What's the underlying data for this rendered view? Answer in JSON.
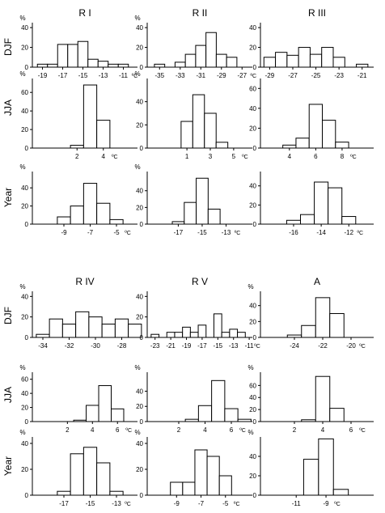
{
  "page": {
    "background": "#ffffff",
    "bar_fill": "#ffffff",
    "line_color": "#000000"
  },
  "chart_data": [
    {
      "id": "r1-djf",
      "region": "R I",
      "season": "DJF",
      "type": "bar",
      "ylabel": "%",
      "xunit": "ºC",
      "ylim": [
        0,
        45
      ],
      "yticks": [
        0,
        20,
        40
      ],
      "xlim": [
        -20,
        -9.6
      ],
      "xticks": [
        -19,
        -17,
        -15,
        -13,
        -11
      ],
      "xticklabels": [
        "-19",
        "-17",
        "-15",
        "-13",
        "-11"
      ],
      "bin_width": 1,
      "bin_starts": [
        -19.5,
        -18.5,
        -17.5,
        -16.5,
        -15.5,
        -14.5,
        -13.5,
        -12.5,
        -11.5,
        -10.5
      ],
      "values": [
        3,
        3,
        23,
        23,
        26,
        8,
        6,
        3,
        3,
        0
      ]
    },
    {
      "id": "r2-djf",
      "region": "R II",
      "season": "DJF",
      "type": "bar",
      "ylabel": "%",
      "xunit": "ºC",
      "ylim": [
        0,
        45
      ],
      "yticks": [
        0,
        20,
        40
      ],
      "xlim": [
        -36.2,
        -26
      ],
      "xticks": [
        -35,
        -33,
        -31,
        -29,
        -27
      ],
      "xticklabels": [
        "-35",
        "-33",
        "-31",
        "-29",
        "-27"
      ],
      "bin_width": 1,
      "bin_starts": [
        -35.5,
        -34.5,
        -33.5,
        -32.5,
        -31.5,
        -30.5,
        -29.5,
        -28.5,
        -27.5
      ],
      "values": [
        3,
        0,
        5,
        13,
        22,
        35,
        13,
        10,
        0
      ]
    },
    {
      "id": "r3-djf",
      "region": "R III",
      "season": "DJF",
      "type": "bar",
      "ylabel": "",
      "xunit": "",
      "ylim": [
        0,
        45
      ],
      "yticks": [
        0,
        20,
        40
      ],
      "xlim": [
        -29.8,
        -20
      ],
      "xticks": [
        -29,
        -27,
        -25,
        -23,
        -21
      ],
      "xticklabels": [
        "-29",
        "-27",
        "-25",
        "-23",
        "-21"
      ],
      "bin_width": 1,
      "bin_starts": [
        -29.5,
        -28.5,
        -27.5,
        -26.5,
        -25.5,
        -24.5,
        -23.5,
        -22.5,
        -21.5,
        -20.5
      ],
      "values": [
        10,
        15,
        12,
        20,
        13,
        20,
        10,
        0,
        3,
        0
      ]
    },
    {
      "id": "r1-jja",
      "region": "R I",
      "season": "JJA",
      "type": "bar",
      "ylabel": "%",
      "xunit": "ºC",
      "ylim": [
        0,
        75
      ],
      "yticks": [
        0,
        20,
        40,
        60
      ],
      "xlim": [
        -1.4,
        6.6
      ],
      "xticks": [
        2,
        4
      ],
      "xticklabels": [
        "2",
        "4"
      ],
      "bin_width": 1,
      "bin_starts": [
        1.5,
        2.5,
        3.5
      ],
      "values": [
        3,
        68,
        30
      ]
    },
    {
      "id": "r2-jja",
      "region": "R II",
      "season": "JJA",
      "type": "bar",
      "ylabel": "%",
      "xunit": "ºC",
      "ylim": [
        0,
        60
      ],
      "yticks": [
        0,
        20,
        40
      ],
      "xlim": [
        -2.4,
        6.6
      ],
      "xticks": [
        1,
        3,
        5
      ],
      "xticklabels": [
        "1",
        "3",
        "5"
      ],
      "bin_width": 1,
      "bin_starts": [
        0.5,
        1.5,
        2.5,
        3.5
      ],
      "values": [
        23,
        46,
        30,
        5
      ]
    },
    {
      "id": "r3-jja",
      "region": "R III",
      "season": "JJA",
      "type": "bar",
      "ylabel": "",
      "xunit": "ºC",
      "ylim": [
        0,
        70
      ],
      "yticks": [
        0,
        20,
        40,
        60
      ],
      "xlim": [
        1.8,
        10.4
      ],
      "xticks": [
        4,
        6,
        8
      ],
      "xticklabels": [
        "4",
        "6",
        "8"
      ],
      "bin_width": 1,
      "bin_starts": [
        3.5,
        4.5,
        5.5,
        6.5,
        7.5
      ],
      "values": [
        3,
        10,
        44,
        28,
        6
      ]
    },
    {
      "id": "r1-year",
      "region": "R I",
      "season": "Year",
      "type": "bar",
      "ylabel": "%",
      "xunit": "ºC",
      "ylim": [
        0,
        58
      ],
      "yticks": [
        0,
        20,
        40
      ],
      "xlim": [
        -11.4,
        -3.4
      ],
      "xticks": [
        -9,
        -7,
        -5
      ],
      "xticklabels": [
        "-9",
        "-7",
        "-5"
      ],
      "bin_width": 1,
      "bin_starts": [
        -9.5,
        -8.5,
        -7.5,
        -6.5,
        -5.5
      ],
      "values": [
        8,
        20,
        45,
        23,
        5
      ]
    },
    {
      "id": "r2-year",
      "region": "R II",
      "season": "Year",
      "type": "bar",
      "ylabel": "%",
      "xunit": "ºC",
      "ylim": [
        0,
        63
      ],
      "yticks": [
        0,
        20,
        40
      ],
      "xlim": [
        -19.6,
        -10.8
      ],
      "xticks": [
        -17,
        -15,
        -13
      ],
      "xticklabels": [
        "-17",
        "-15",
        "-13"
      ],
      "bin_width": 1,
      "bin_starts": [
        -17.5,
        -16.5,
        -15.5,
        -14.5
      ],
      "values": [
        3,
        26,
        55,
        18
      ]
    },
    {
      "id": "r3-year",
      "region": "R III",
      "season": "Year",
      "type": "bar",
      "ylabel": "",
      "xunit": "ºC",
      "ylim": [
        0,
        55
      ],
      "yticks": [
        0,
        20,
        40
      ],
      "xlim": [
        -18.4,
        -10.2
      ],
      "xticks": [
        -16,
        -14,
        -12
      ],
      "xticklabels": [
        "-16",
        "-14",
        "-12"
      ],
      "bin_width": 1,
      "bin_starts": [
        -16.5,
        -15.5,
        -14.5,
        -13.5,
        -12.5
      ],
      "values": [
        4,
        10,
        44,
        38,
        8
      ]
    },
    {
      "id": "r4-djf",
      "region": "R IV",
      "season": "DJF",
      "type": "bar",
      "ylabel": "%",
      "xunit": "",
      "ylim": [
        0,
        45
      ],
      "yticks": [
        0,
        20,
        40
      ],
      "xlim": [
        -34.8,
        -26.8
      ],
      "xticks": [
        -34,
        -32,
        -30,
        -28
      ],
      "xticklabels": [
        "-34",
        "-32",
        "-30",
        "-28"
      ],
      "bin_width": 1,
      "bin_starts": [
        -34.5,
        -33.5,
        -32.5,
        -31.5,
        -30.5,
        -29.5,
        -28.5,
        -27.5
      ],
      "values": [
        3,
        18,
        13,
        25,
        20,
        13,
        18,
        13
      ]
    },
    {
      "id": "r5-djf",
      "region": "R V",
      "season": "DJF",
      "type": "bar",
      "ylabel": "",
      "xunit": "ºC",
      "ylim": [
        0,
        45
      ],
      "yticks": [
        0,
        20,
        40
      ],
      "xlim": [
        -24,
        -10.6
      ],
      "xticks": [
        -23,
        -21,
        -19,
        -17,
        -15,
        -13,
        -11
      ],
      "xticklabels": [
        "-23",
        "-21",
        "-19",
        "-17",
        "-15",
        "-13",
        "-11"
      ],
      "bin_width": 1,
      "bin_starts": [
        -23.5,
        -22.5,
        -21.5,
        -20.5,
        -19.5,
        -18.5,
        -17.5,
        -16.5,
        -15.5,
        -14.5,
        -13.5,
        -12.5,
        -11.5
      ],
      "values": [
        3,
        0,
        5,
        5,
        10,
        5,
        12,
        0,
        23,
        5,
        8,
        5,
        0
      ]
    },
    {
      "id": "a-djf",
      "region": "A",
      "season": "DJF",
      "type": "bar",
      "ylabel": "%",
      "xunit": "ºC",
      "ylim": [
        0,
        58
      ],
      "yticks": [
        0,
        20,
        40
      ],
      "xlim": [
        -26.4,
        -18.4
      ],
      "xticks": [
        -24,
        -22,
        -20
      ],
      "xticklabels": [
        "-24",
        "-22",
        "-20"
      ],
      "bin_width": 1,
      "bin_starts": [
        -24.5,
        -23.5,
        -22.5,
        -21.5,
        -20.5
      ],
      "values": [
        3,
        15,
        50,
        30,
        0
      ]
    },
    {
      "id": "r4-jja",
      "region": "R IV",
      "season": "JJA",
      "type": "bar",
      "ylabel": "%",
      "xunit": "ºC",
      "ylim": [
        0,
        70
      ],
      "yticks": [
        0,
        20,
        40,
        60
      ],
      "xlim": [
        -0.8,
        7.6
      ],
      "xticks": [
        2,
        4,
        6
      ],
      "xticklabels": [
        "2",
        "4",
        "6"
      ],
      "bin_width": 1,
      "bin_starts": [
        2.5,
        3.5,
        4.5,
        5.5
      ],
      "values": [
        2,
        23,
        51,
        18
      ]
    },
    {
      "id": "r5-jja",
      "region": "R V",
      "season": "JJA",
      "type": "bar",
      "ylabel": "%",
      "xunit": "ºC",
      "ylim": [
        0,
        65
      ],
      "yticks": [
        0,
        20,
        40
      ],
      "xlim": [
        -0.4,
        7.6
      ],
      "xticks": [
        2,
        4,
        6
      ],
      "xticklabels": [
        "2",
        "4",
        "6"
      ],
      "bin_width": 1,
      "bin_starts": [
        2.5,
        3.5,
        4.5,
        5.5,
        6.5
      ],
      "values": [
        3,
        21,
        54,
        17,
        3
      ]
    },
    {
      "id": "a-jja",
      "region": "A",
      "season": "JJA",
      "type": "bar",
      "ylabel": "%",
      "xunit": "ºC",
      "ylim": [
        0,
        82
      ],
      "yticks": [
        0,
        20,
        40,
        60
      ],
      "xlim": [
        -0.4,
        7.6
      ],
      "xticks": [
        2,
        4,
        6
      ],
      "xticklabels": [
        "2",
        "4",
        "6"
      ],
      "bin_width": 1,
      "bin_starts": [
        2.5,
        3.5,
        4.5
      ],
      "values": [
        3,
        75,
        22
      ]
    },
    {
      "id": "r4-year",
      "region": "R IV",
      "season": "Year",
      "type": "bar",
      "ylabel": "%",
      "xunit": "ºC",
      "ylim": [
        0,
        45
      ],
      "yticks": [
        0,
        20,
        40
      ],
      "xlim": [
        -19.4,
        -11.4
      ],
      "xticks": [
        -17,
        -15,
        -13
      ],
      "xticklabels": [
        "-17",
        "-15",
        "-13"
      ],
      "bin_width": 1,
      "bin_starts": [
        -17.5,
        -16.5,
        -15.5,
        -14.5,
        -13.5
      ],
      "values": [
        3,
        32,
        37,
        25,
        3
      ]
    },
    {
      "id": "r5-year",
      "region": "R V",
      "season": "Year",
      "type": "bar",
      "ylabel": "%",
      "xunit": "ºC",
      "ylim": [
        0,
        45
      ],
      "yticks": [
        0,
        20,
        40
      ],
      "xlim": [
        -11.4,
        -2.8
      ],
      "xticks": [
        -9,
        -7,
        -5
      ],
      "xticklabels": [
        "-9",
        "-7",
        "-5"
      ],
      "bin_width": 1,
      "bin_starts": [
        -9.5,
        -8.5,
        -7.5,
        -6.5,
        -5.5,
        -4.5
      ],
      "values": [
        10,
        10,
        35,
        30,
        15,
        0
      ]
    },
    {
      "id": "a-year",
      "region": "A",
      "season": "Year",
      "type": "bar",
      "ylabel": "%",
      "xunit": "ºC",
      "ylim": [
        0,
        60
      ],
      "yticks": [
        0,
        20,
        40
      ],
      "xlim": [
        -13.4,
        -5.8
      ],
      "xticks": [
        -11,
        -9
      ],
      "xticklabels": [
        "-11",
        "-9"
      ],
      "bin_width": 1,
      "bin_starts": [
        -11.5,
        -10.5,
        -9.5,
        -8.5
      ],
      "values": [
        0,
        37,
        58,
        6
      ]
    }
  ],
  "figure": {
    "column_titles": [
      "R I",
      "R II",
      "R III",
      "R IV",
      "R V",
      "A"
    ],
    "row_labels": [
      "DJF",
      "JJA",
      "Year",
      "DJF",
      "JJA",
      "Year"
    ]
  }
}
